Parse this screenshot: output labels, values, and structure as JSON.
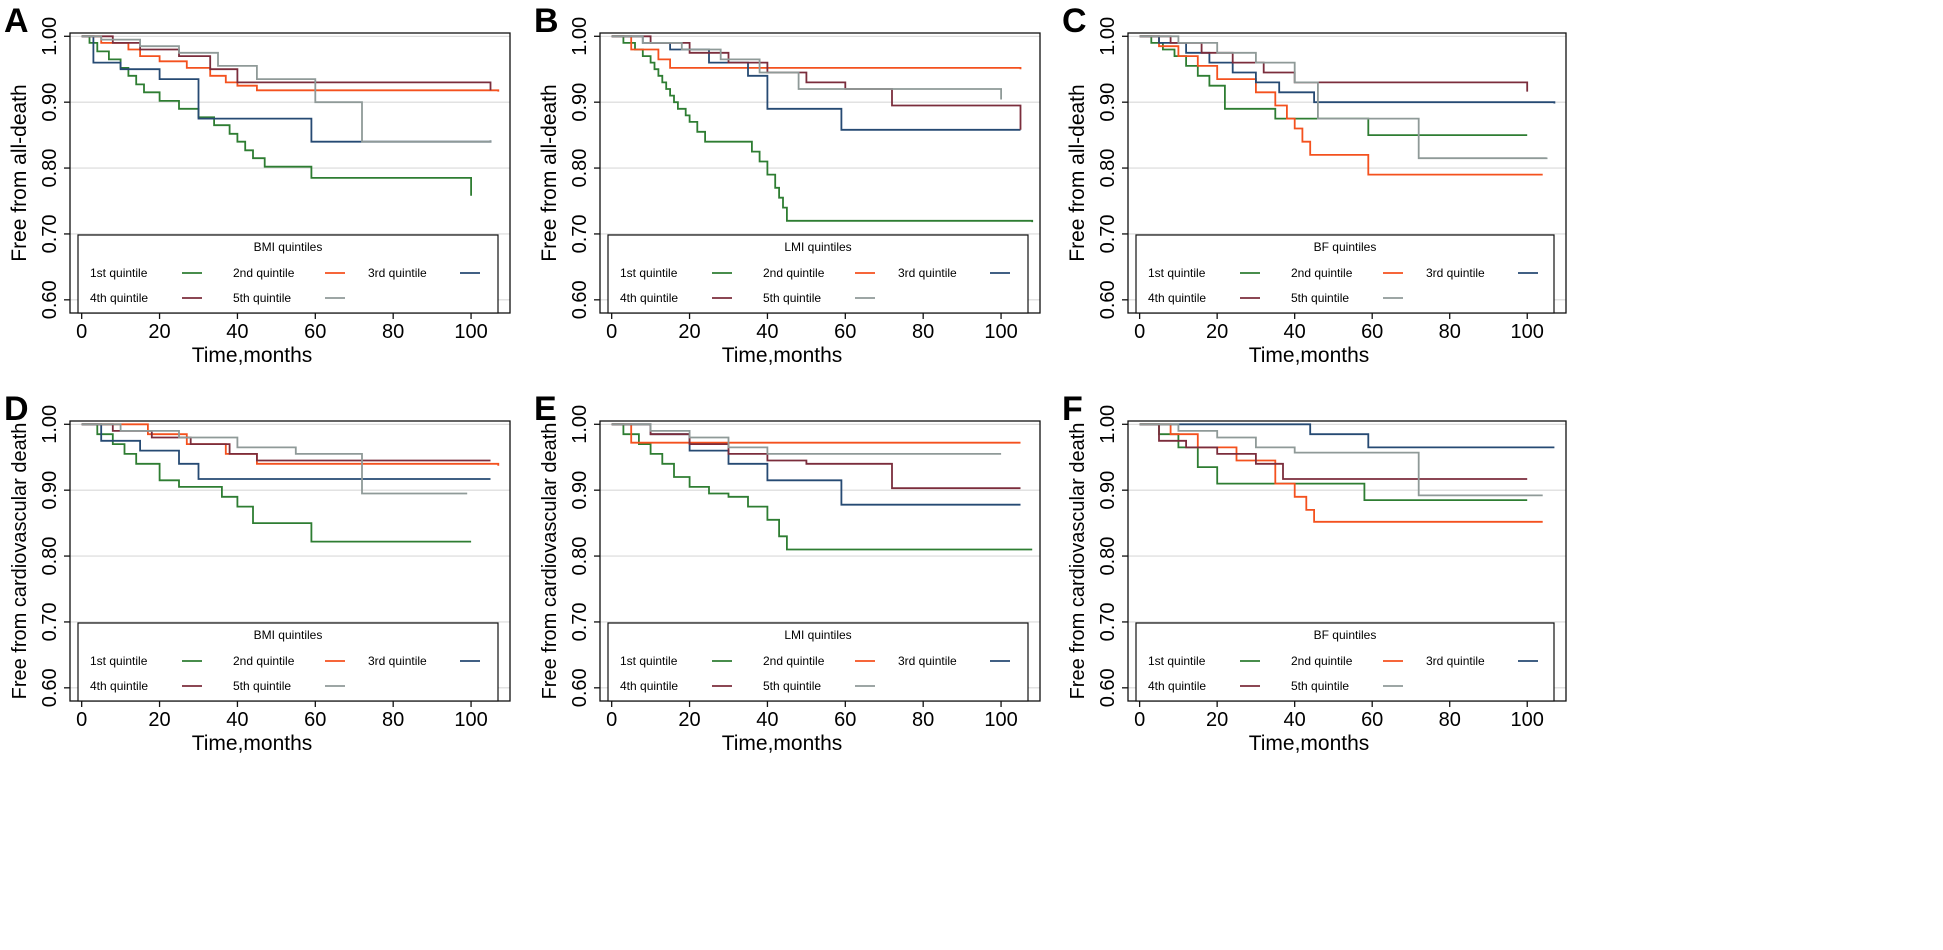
{
  "figure": {
    "x_axis_label": "Time,months",
    "legend_labels": [
      "1st quintile",
      "2nd quintile",
      "3rd quintile",
      "4th quintile",
      "5th quintile"
    ],
    "series_colors": [
      "#2e7d32",
      "#f4511e",
      "#264a73",
      "#7b2d3c",
      "#8f9a98"
    ],
    "x_ticks": [
      0,
      20,
      40,
      60,
      80,
      100
    ],
    "y_ticks": [
      0.6,
      0.7,
      0.8,
      0.9,
      1.0
    ],
    "y_tick_labels": [
      "0.60",
      "0.70",
      "0.80",
      "0.90",
      "1.00"
    ]
  },
  "chart_data": [
    {
      "panel": "A",
      "type": "line",
      "title": "",
      "xlabel": "Time,months",
      "ylabel": "Free from all-death",
      "legend_title": "BMI quintiles",
      "xlim": [
        -3,
        110
      ],
      "ylim": [
        0.58,
        1.005
      ],
      "series": [
        {
          "name": "1st quintile",
          "x": [
            0,
            2,
            4,
            7,
            10,
            12,
            14,
            16,
            20,
            25,
            30,
            34,
            38,
            40,
            42,
            44,
            47,
            59,
            100
          ],
          "y": [
            1,
            0.99,
            0.977,
            0.965,
            0.952,
            0.94,
            0.927,
            0.915,
            0.902,
            0.89,
            0.877,
            0.865,
            0.852,
            0.84,
            0.827,
            0.815,
            0.802,
            0.785,
            0.758
          ]
        },
        {
          "name": "2nd quintile",
          "x": [
            0,
            5,
            12,
            15,
            20,
            27,
            33,
            37,
            40,
            45,
            107
          ],
          "y": [
            1,
            0.99,
            0.98,
            0.97,
            0.962,
            0.952,
            0.94,
            0.93,
            0.925,
            0.918,
            0.916
          ]
        },
        {
          "name": "3rd quintile",
          "x": [
            0,
            3,
            10,
            20,
            30,
            59,
            105
          ],
          "y": [
            1,
            0.96,
            0.95,
            0.935,
            0.875,
            0.84,
            0.842
          ]
        },
        {
          "name": "4th quintile",
          "x": [
            0,
            8,
            15,
            25,
            33,
            40,
            105
          ],
          "y": [
            1,
            0.99,
            0.98,
            0.97,
            0.95,
            0.93,
            0.918
          ]
        },
        {
          "name": "5th quintile",
          "x": [
            0,
            5,
            15,
            25,
            35,
            45,
            60,
            72,
            105
          ],
          "y": [
            1,
            0.995,
            0.985,
            0.975,
            0.955,
            0.935,
            0.9,
            0.84,
            0.842
          ]
        }
      ]
    },
    {
      "panel": "B",
      "type": "line",
      "title": "",
      "xlabel": "Time,months",
      "ylabel": "Free from all-death",
      "legend_title": "LMI quintiles",
      "xlim": [
        -3,
        110
      ],
      "ylim": [
        0.58,
        1.005
      ],
      "series": [
        {
          "name": "1st quintile",
          "x": [
            0,
            3,
            6,
            8,
            10,
            11,
            12,
            13,
            14,
            15,
            16,
            17,
            19,
            20,
            22,
            24,
            36,
            38,
            40,
            42,
            43,
            44,
            45,
            108
          ],
          "y": [
            1,
            0.99,
            0.98,
            0.97,
            0.96,
            0.95,
            0.94,
            0.93,
            0.92,
            0.91,
            0.9,
            0.89,
            0.88,
            0.87,
            0.855,
            0.84,
            0.825,
            0.81,
            0.79,
            0.77,
            0.755,
            0.74,
            0.72,
            0.718
          ]
        },
        {
          "name": "2nd quintile",
          "x": [
            0,
            5,
            12,
            15,
            105
          ],
          "y": [
            1,
            0.98,
            0.965,
            0.952,
            0.95
          ]
        },
        {
          "name": "3rd quintile",
          "x": [
            0,
            8,
            15,
            25,
            35,
            40,
            59,
            105
          ],
          "y": [
            1,
            0.99,
            0.98,
            0.96,
            0.94,
            0.89,
            0.858,
            0.858
          ]
        },
        {
          "name": "4th quintile",
          "x": [
            0,
            10,
            20,
            30,
            40,
            50,
            60,
            72,
            105
          ],
          "y": [
            1,
            0.99,
            0.975,
            0.96,
            0.945,
            0.93,
            0.92,
            0.895,
            0.858
          ]
        },
        {
          "name": "5th quintile",
          "x": [
            0,
            8,
            18,
            28,
            38,
            48,
            100
          ],
          "y": [
            1,
            0.99,
            0.98,
            0.965,
            0.945,
            0.92,
            0.904
          ]
        }
      ]
    },
    {
      "panel": "C",
      "type": "line",
      "title": "",
      "xlabel": "Time,months",
      "ylabel": "Free from all-death",
      "legend_title": "BF quintiles",
      "xlim": [
        -3,
        110
      ],
      "ylim": [
        0.58,
        1.005
      ],
      "series": [
        {
          "name": "1st quintile",
          "x": [
            0,
            3,
            6,
            9,
            12,
            15,
            18,
            22,
            35,
            59,
            100
          ],
          "y": [
            1,
            0.99,
            0.98,
            0.97,
            0.955,
            0.94,
            0.925,
            0.89,
            0.875,
            0.85,
            0.85
          ]
        },
        {
          "name": "2nd quintile",
          "x": [
            0,
            5,
            10,
            15,
            20,
            30,
            35,
            38,
            40,
            42,
            44,
            59,
            104
          ],
          "y": [
            1,
            0.985,
            0.97,
            0.955,
            0.935,
            0.915,
            0.895,
            0.875,
            0.86,
            0.84,
            0.82,
            0.79,
            0.79
          ]
        },
        {
          "name": "3rd quintile",
          "x": [
            0,
            5,
            12,
            18,
            24,
            30,
            36,
            45,
            107
          ],
          "y": [
            1,
            0.99,
            0.975,
            0.96,
            0.945,
            0.93,
            0.915,
            0.9,
            0.898
          ]
        },
        {
          "name": "4th quintile",
          "x": [
            0,
            8,
            16,
            24,
            32,
            40,
            100
          ],
          "y": [
            1,
            0.99,
            0.975,
            0.96,
            0.945,
            0.93,
            0.916
          ]
        },
        {
          "name": "5th quintile",
          "x": [
            0,
            10,
            20,
            30,
            40,
            46,
            72,
            105
          ],
          "y": [
            1,
            0.99,
            0.975,
            0.96,
            0.93,
            0.875,
            0.815,
            0.816
          ]
        }
      ]
    },
    {
      "panel": "D",
      "type": "line",
      "title": "",
      "xlabel": "Time,months",
      "ylabel": "Free from cardiovascular death",
      "legend_title": "BMI quintiles",
      "xlim": [
        -3,
        110
      ],
      "ylim": [
        0.58,
        1.005
      ],
      "series": [
        {
          "name": "1st quintile",
          "x": [
            0,
            4,
            8,
            11,
            14,
            20,
            25,
            36,
            40,
            44,
            59,
            100
          ],
          "y": [
            1,
            0.985,
            0.97,
            0.955,
            0.94,
            0.915,
            0.905,
            0.89,
            0.875,
            0.85,
            0.822,
            0.822
          ]
        },
        {
          "name": "2nd quintile",
          "x": [
            0,
            17,
            27,
            37,
            45,
            107
          ],
          "y": [
            1,
            0.985,
            0.97,
            0.955,
            0.94,
            0.937
          ]
        },
        {
          "name": "3rd quintile",
          "x": [
            0,
            5,
            15,
            25,
            30,
            105
          ],
          "y": [
            1,
            0.975,
            0.96,
            0.94,
            0.917,
            0.917
          ]
        },
        {
          "name": "4th quintile",
          "x": [
            0,
            8,
            18,
            28,
            38,
            45,
            105
          ],
          "y": [
            1,
            0.99,
            0.98,
            0.97,
            0.955,
            0.945,
            0.945
          ]
        },
        {
          "name": "5th quintile",
          "x": [
            0,
            10,
            25,
            40,
            55,
            72,
            99
          ],
          "y": [
            1,
            0.99,
            0.98,
            0.965,
            0.955,
            0.895,
            0.895
          ]
        }
      ]
    },
    {
      "panel": "E",
      "type": "line",
      "title": "",
      "xlabel": "Time,months",
      "ylabel": "Free from cardiovascular death",
      "legend_title": "LMI quintiles",
      "xlim": [
        -3,
        110
      ],
      "ylim": [
        0.58,
        1.005
      ],
      "series": [
        {
          "name": "1st quintile",
          "x": [
            0,
            3,
            7,
            10,
            13,
            16,
            20,
            25,
            30,
            35,
            40,
            43,
            45,
            108
          ],
          "y": [
            1,
            0.985,
            0.97,
            0.955,
            0.94,
            0.92,
            0.905,
            0.895,
            0.89,
            0.875,
            0.855,
            0.83,
            0.81,
            0.81
          ]
        },
        {
          "name": "2nd quintile",
          "x": [
            0,
            5,
            105
          ],
          "y": [
            1,
            0.972,
            0.972
          ]
        },
        {
          "name": "3rd quintile",
          "x": [
            0,
            10,
            20,
            30,
            40,
            59,
            105
          ],
          "y": [
            1,
            0.985,
            0.96,
            0.94,
            0.915,
            0.878,
            0.878
          ]
        },
        {
          "name": "4th quintile",
          "x": [
            0,
            10,
            20,
            30,
            40,
            50,
            72,
            105
          ],
          "y": [
            1,
            0.985,
            0.97,
            0.955,
            0.945,
            0.94,
            0.903,
            0.903
          ]
        },
        {
          "name": "5th quintile",
          "x": [
            0,
            10,
            20,
            30,
            40,
            100
          ],
          "y": [
            1,
            0.99,
            0.98,
            0.965,
            0.955,
            0.955
          ]
        }
      ]
    },
    {
      "panel": "F",
      "type": "line",
      "title": "",
      "xlabel": "Time,months",
      "ylabel": "Free from cardiovascular death",
      "legend_title": "BF quintiles",
      "xlim": [
        -3,
        110
      ],
      "ylim": [
        0.58,
        1.005
      ],
      "series": [
        {
          "name": "1st quintile",
          "x": [
            0,
            5,
            10,
            15,
            20,
            58,
            100
          ],
          "y": [
            1,
            0.985,
            0.965,
            0.935,
            0.91,
            0.885,
            0.885
          ]
        },
        {
          "name": "2nd quintile",
          "x": [
            0,
            8,
            15,
            25,
            35,
            40,
            43,
            45,
            104
          ],
          "y": [
            1,
            0.985,
            0.965,
            0.945,
            0.91,
            0.89,
            0.87,
            0.852,
            0.852
          ]
        },
        {
          "name": "3rd quintile",
          "x": [
            0,
            44,
            59,
            107
          ],
          "y": [
            1,
            0.985,
            0.965,
            0.965
          ]
        },
        {
          "name": "4th quintile",
          "x": [
            0,
            5,
            12,
            20,
            30,
            37,
            100
          ],
          "y": [
            1,
            0.975,
            0.965,
            0.955,
            0.94,
            0.917,
            0.917
          ]
        },
        {
          "name": "5th quintile",
          "x": [
            0,
            10,
            20,
            30,
            40,
            72,
            104
          ],
          "y": [
            1,
            0.99,
            0.98,
            0.965,
            0.957,
            0.892,
            0.892
          ]
        }
      ]
    }
  ]
}
